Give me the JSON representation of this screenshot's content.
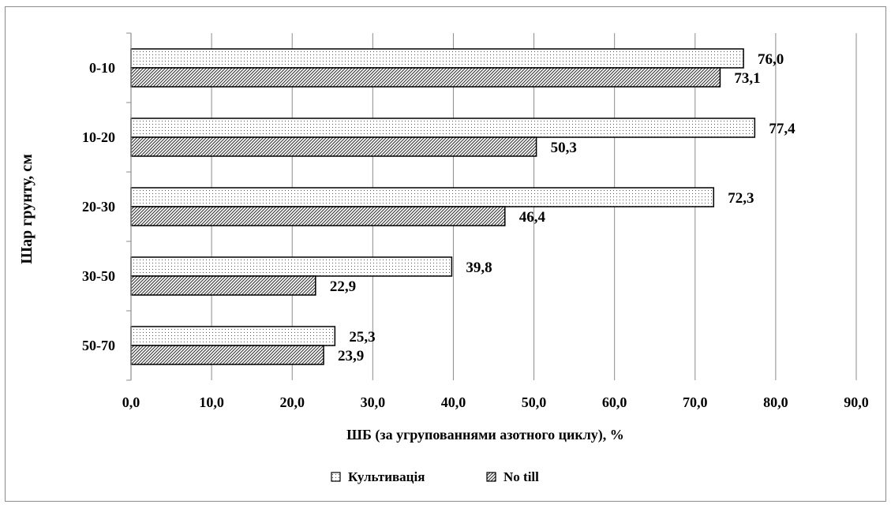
{
  "chart_data": {
    "type": "bar",
    "orientation": "horizontal",
    "title": "",
    "xlabel": "ШБ (за угрупованнями азотного циклу), %",
    "ylabel": "Шар грунту, см",
    "categories": [
      "0-10",
      "10-20",
      "20-30",
      "30-50",
      "50-70"
    ],
    "xlim": [
      0,
      90
    ],
    "x_ticks": [
      "0,0",
      "10,0",
      "20,0",
      "30,0",
      "40,0",
      "50,0",
      "60,0",
      "70,0",
      "80,0",
      "90,0"
    ],
    "grid": "vertical",
    "legend_position": "bottom",
    "series": [
      {
        "name": "Культивація",
        "pattern": "dots",
        "values": [
          76.0,
          77.4,
          72.3,
          39.8,
          25.3
        ],
        "labels": [
          "76,0",
          "77,4",
          "72,3",
          "39,8",
          "25,3"
        ]
      },
      {
        "name": "No till",
        "pattern": "diagonal-hatch",
        "values": [
          73.1,
          50.3,
          46.4,
          22.9,
          23.9
        ],
        "labels": [
          "73,1",
          "50,3",
          "46,4",
          "22,9",
          "23,9"
        ]
      }
    ]
  }
}
